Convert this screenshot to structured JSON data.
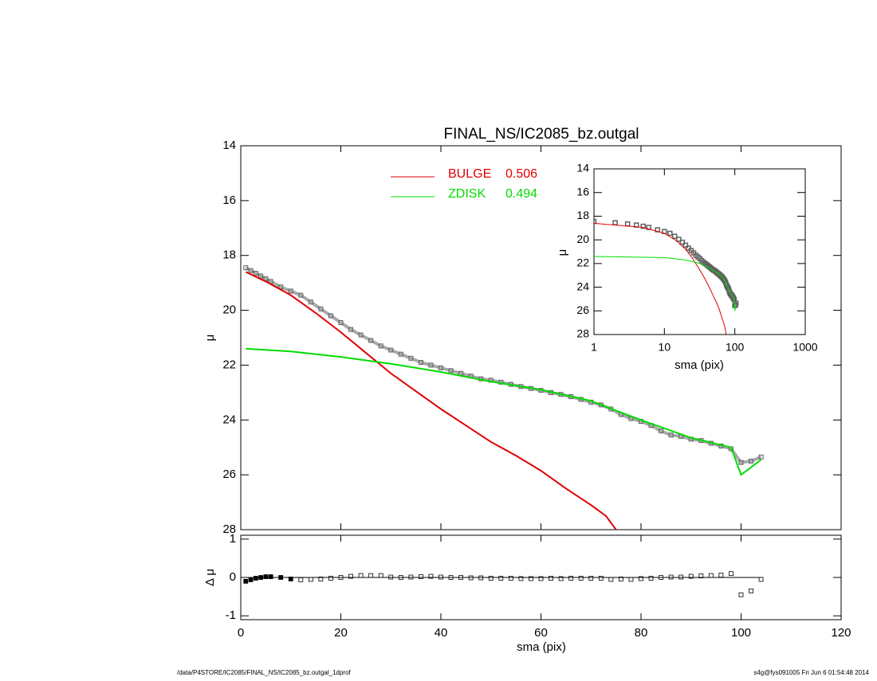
{
  "chart_data": [
    {
      "type": "line",
      "title": "FINAL_NS/IC2085_bz.outgal",
      "ylabel": "μ",
      "xlim": [
        0,
        120
      ],
      "ylim": [
        14,
        28
      ],
      "xticks": [
        0,
        20,
        40,
        60,
        80,
        100,
        120
      ],
      "yticks": [
        14,
        16,
        18,
        20,
        22,
        24,
        26,
        28
      ],
      "y_inverted": true,
      "series": [
        {
          "color": "#606060",
          "marker": "square",
          "x": [
            1,
            2,
            3,
            4,
            5,
            6,
            8,
            10,
            12,
            14,
            16,
            18,
            20,
            22,
            24,
            26,
            28,
            30,
            32,
            34,
            36,
            38,
            40,
            42,
            44,
            46,
            48,
            50,
            52,
            54,
            56,
            58,
            60,
            62,
            64,
            66,
            68,
            70,
            72,
            74,
            76,
            78,
            80,
            82,
            84,
            86,
            88,
            90,
            92,
            94,
            96,
            98,
            100,
            102,
            104
          ],
          "values": [
            18.45,
            18.55,
            18.65,
            18.75,
            18.85,
            18.95,
            19.15,
            19.3,
            19.45,
            19.7,
            19.95,
            20.2,
            20.45,
            20.7,
            20.9,
            21.1,
            21.3,
            21.45,
            21.6,
            21.75,
            21.9,
            22.0,
            22.1,
            22.2,
            22.3,
            22.4,
            22.5,
            22.55,
            22.62,
            22.7,
            22.78,
            22.85,
            22.92,
            23.0,
            23.07,
            23.15,
            23.25,
            23.35,
            23.45,
            23.6,
            23.8,
            23.95,
            24.05,
            24.2,
            24.4,
            24.55,
            24.6,
            24.7,
            24.75,
            24.85,
            24.95,
            25.05,
            25.55,
            25.5,
            25.35
          ]
        },
        {
          "name": "BULGE",
          "fraction": 0.506,
          "color": "#e00000",
          "x": [
            1,
            5,
            10,
            15,
            20,
            25,
            30,
            35,
            40,
            45,
            50,
            55,
            60,
            65,
            70,
            73,
            75
          ],
          "values": [
            18.6,
            18.95,
            19.45,
            20.1,
            20.8,
            21.55,
            22.3,
            22.95,
            23.6,
            24.2,
            24.8,
            25.3,
            25.85,
            26.5,
            27.1,
            27.5,
            28.0
          ]
        },
        {
          "name": "ZDISK",
          "fraction": 0.494,
          "color": "#00dd00",
          "x": [
            1,
            10,
            20,
            30,
            40,
            50,
            60,
            70,
            72,
            80,
            90,
            98,
            100,
            104
          ],
          "values": [
            21.4,
            21.5,
            21.7,
            21.95,
            22.25,
            22.6,
            22.9,
            23.3,
            23.45,
            24.0,
            24.65,
            25.0,
            26.0,
            25.45
          ]
        }
      ]
    },
    {
      "type": "scatter",
      "xlabel": "sma (pix)",
      "ylabel": "Δ μ",
      "xlim": [
        0,
        120
      ],
      "ylim": [
        -1.1,
        1.1
      ],
      "xticks": [
        0,
        20,
        40,
        60,
        80,
        100,
        120
      ],
      "yticks": [
        -1,
        0,
        1
      ],
      "color": "#000000",
      "x": [
        1,
        2,
        3,
        4,
        5,
        6,
        8,
        10,
        12,
        14,
        16,
        18,
        20,
        22,
        24,
        26,
        28,
        30,
        32,
        34,
        36,
        38,
        40,
        42,
        44,
        46,
        48,
        50,
        52,
        54,
        56,
        58,
        60,
        62,
        64,
        66,
        68,
        70,
        72,
        74,
        76,
        78,
        80,
        82,
        84,
        86,
        88,
        90,
        92,
        94,
        96,
        98,
        100,
        102,
        104
      ],
      "values": [
        -0.1,
        -0.06,
        -0.02,
        0.0,
        0.02,
        0.02,
        0.0,
        -0.04,
        -0.06,
        -0.05,
        -0.04,
        -0.02,
        0.0,
        0.03,
        0.05,
        0.05,
        0.05,
        0.01,
        0.0,
        0.01,
        0.02,
        0.03,
        0.01,
        0.0,
        0.0,
        -0.01,
        -0.01,
        -0.02,
        -0.02,
        -0.02,
        -0.03,
        -0.03,
        -0.03,
        -0.02,
        -0.03,
        -0.02,
        -0.02,
        -0.02,
        -0.02,
        -0.05,
        -0.04,
        -0.05,
        -0.03,
        -0.02,
        0.0,
        0.01,
        0.01,
        0.03,
        0.04,
        0.05,
        0.06,
        0.1,
        -0.45,
        -0.35,
        -0.05
      ]
    },
    {
      "type": "line",
      "xlabel": "sma (pix)",
      "ylabel": "μ",
      "log_x": true,
      "xlim": [
        1,
        1000
      ],
      "ylim": [
        14,
        28
      ],
      "xticks": [
        1,
        10,
        100,
        1000
      ],
      "yticks": [
        14,
        16,
        18,
        20,
        22,
        24,
        26,
        28
      ],
      "y_inverted": true
    }
  ],
  "footer": {
    "left": "/data/P4STORE/IC2085/FINAL_NS/IC2085_bz.outgal_1dprof",
    "right": "s4g@fys091005  Fri Jun  6 01:54:48 2014"
  }
}
